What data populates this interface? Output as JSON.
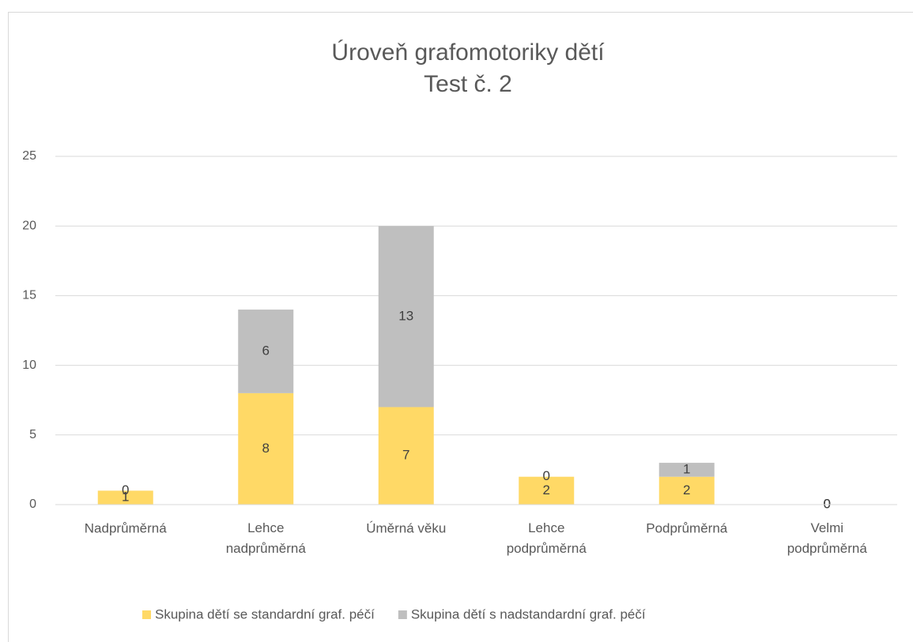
{
  "chart_data": {
    "type": "stacked_bar",
    "title": [
      "Úroveň grafomotoriky dětí",
      "Test č. 2"
    ],
    "categories": [
      "Nadprůměrná",
      "Lehce nadprůměrná",
      "Úměrná věku",
      "Lehce podprůměrná",
      "Podprůměrná",
      "Velmi podprůměrná"
    ],
    "series": [
      {
        "name": "Skupina dětí se standardní graf. péčí",
        "color": "#ffd966",
        "values": [
          1,
          8,
          7,
          2,
          2,
          0
        ]
      },
      {
        "name": "Skupina dětí s nadstandardní graf. péčí",
        "color": "#bfbfbf",
        "values": [
          0,
          6,
          13,
          0,
          1,
          0
        ]
      }
    ],
    "ylim": [
      0,
      25
    ],
    "yticks": [
      0,
      5,
      10,
      15,
      20,
      25
    ],
    "grid": true,
    "legend": "bottom"
  }
}
